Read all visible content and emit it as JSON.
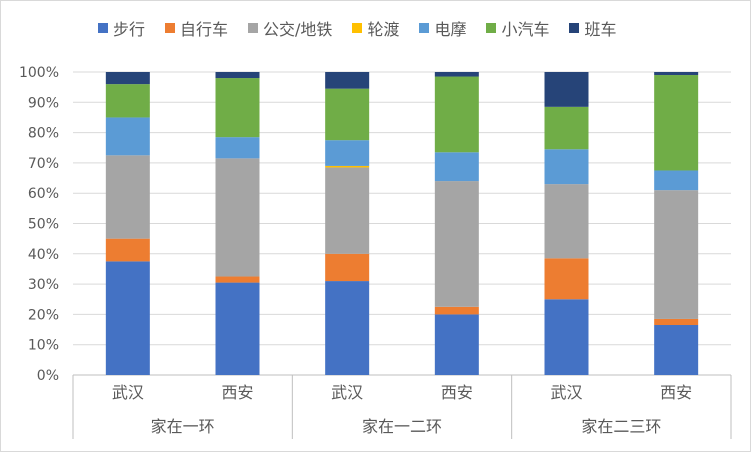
{
  "chart_data": {
    "type": "bar",
    "stacked": true,
    "percent": true,
    "groups": [
      "家在一环",
      "家在一二环",
      "家在二三环"
    ],
    "cities": [
      "武汉",
      "西安"
    ],
    "categories": [
      "武汉",
      "西安",
      "武汉",
      "西安",
      "武汉",
      "西安"
    ],
    "yticks": [
      "0%",
      "10%",
      "20%",
      "30%",
      "40%",
      "50%",
      "60%",
      "70%",
      "80%",
      "90%",
      "100%"
    ],
    "ylim": [
      0,
      100
    ],
    "grid": true,
    "legend_position": "top",
    "series": [
      {
        "name": "步行",
        "color": "#4472C4",
        "values": [
          37.5,
          30.5,
          31,
          20,
          25,
          16.5
        ]
      },
      {
        "name": "自行车",
        "color": "#ED7D31",
        "values": [
          7.5,
          2,
          9,
          2.5,
          13.5,
          2
        ]
      },
      {
        "name": "公交/地铁",
        "color": "#A5A5A5",
        "values": [
          27.5,
          39,
          28.5,
          41.5,
          24.5,
          42.5
        ]
      },
      {
        "name": "轮渡",
        "color": "#FFC000",
        "values": [
          0,
          0,
          0.5,
          0,
          0,
          0
        ]
      },
      {
        "name": "电摩",
        "color": "#5B9BD5",
        "values": [
          12.5,
          7,
          8.5,
          9.5,
          11.5,
          6.5
        ]
      },
      {
        "name": "小汽车",
        "color": "#70AD47",
        "values": [
          11,
          19.5,
          17,
          25,
          14,
          31.5
        ]
      },
      {
        "name": "班车",
        "color": "#264478",
        "values": [
          4,
          2,
          5.5,
          1.5,
          11.5,
          1
        ]
      }
    ]
  },
  "colors": {
    "grid": "#d9d9d9",
    "axis": "#bfbfbf",
    "text": "#595959"
  }
}
